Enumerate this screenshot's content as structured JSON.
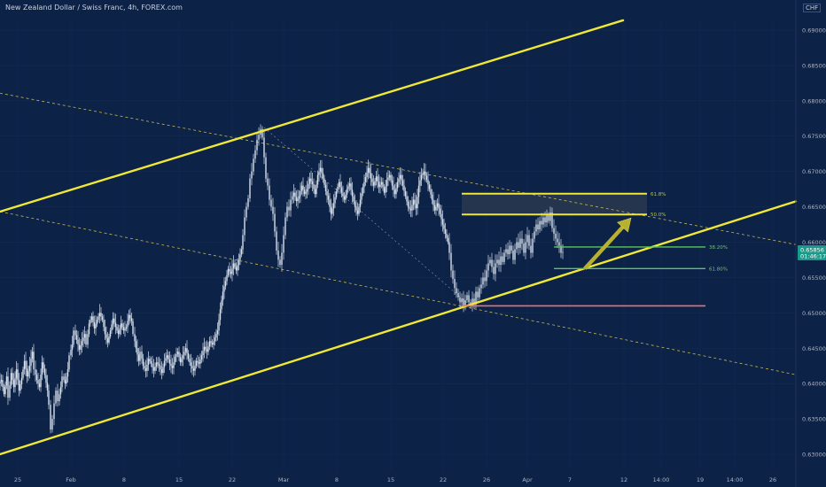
{
  "header": {
    "title": "New Zealand Dollar / Swiss Franc, 4h, FOREX.com",
    "currency": "CHF"
  },
  "colors": {
    "background": "#0c2246",
    "candle": "#d8e0ec",
    "trendline": "#f0e838",
    "dashed": "#c8b850",
    "fib_green": "#5cc65c",
    "support_red": "#f07070",
    "zone_fill": "#2a3850",
    "arrow": "#b8b030",
    "price_tag": "#1a9a8a"
  },
  "chart_data": {
    "type": "candlestick",
    "symbol": "NZD/CHF",
    "timeframe": "4h",
    "ylim": [
      0.6295,
      0.6915
    ],
    "y_ticks": [
      "0.69000",
      "0.68500",
      "0.68000",
      "0.67500",
      "0.67000",
      "0.66500",
      "0.66000",
      "0.65500",
      "0.65000",
      "0.64500",
      "0.64000",
      "0.63500",
      "0.63000"
    ],
    "x_ticks": [
      "25",
      "Feb",
      "8",
      "15",
      "22",
      "Mar",
      "8",
      "15",
      "22",
      "26",
      "Apr",
      "7",
      "12",
      "14:00",
      "19",
      "14:00",
      "26"
    ],
    "current_price": "0.65856",
    "countdown": "01:46:17",
    "path_points": [
      [
        0,
        0.64
      ],
      [
        3,
        0.6405
      ],
      [
        6,
        0.6385
      ],
      [
        9,
        0.641
      ],
      [
        11,
        0.638
      ],
      [
        14,
        0.6415
      ],
      [
        17,
        0.6395
      ],
      [
        20,
        0.642
      ],
      [
        23,
        0.639
      ],
      [
        26,
        0.6408
      ],
      [
        29,
        0.6432
      ],
      [
        32,
        0.641
      ],
      [
        35,
        0.6425
      ],
      [
        38,
        0.6445
      ],
      [
        40,
        0.642
      ],
      [
        43,
        0.6405
      ],
      [
        46,
        0.6395
      ],
      [
        49,
        0.643
      ],
      [
        52,
        0.6412
      ],
      [
        55,
        0.639
      ],
      [
        57,
        0.637
      ],
      [
        59,
        0.6335
      ],
      [
        61,
        0.635
      ],
      [
        63,
        0.6372
      ],
      [
        65,
        0.639
      ],
      [
        67,
        0.6375
      ],
      [
        70,
        0.6395
      ],
      [
        72,
        0.641
      ],
      [
        75,
        0.64
      ],
      [
        78,
        0.642
      ],
      [
        80,
        0.644
      ],
      [
        83,
        0.6455
      ],
      [
        85,
        0.6475
      ],
      [
        88,
        0.6462
      ],
      [
        91,
        0.6448
      ],
      [
        94,
        0.646
      ],
      [
        97,
        0.647
      ],
      [
        99,
        0.6455
      ],
      [
        102,
        0.6485
      ],
      [
        105,
        0.6495
      ],
      [
        108,
        0.6478
      ],
      [
        111,
        0.649
      ],
      [
        114,
        0.65
      ],
      [
        117,
        0.649
      ],
      [
        120,
        0.647
      ],
      [
        123,
        0.6458
      ],
      [
        126,
        0.6475
      ],
      [
        129,
        0.6492
      ],
      [
        132,
        0.648
      ],
      [
        135,
        0.647
      ],
      [
        138,
        0.6485
      ],
      [
        141,
        0.6475
      ],
      [
        144,
        0.648
      ],
      [
        147,
        0.6497
      ],
      [
        150,
        0.6488
      ],
      [
        152,
        0.647
      ],
      [
        155,
        0.645
      ],
      [
        158,
        0.6432
      ],
      [
        160,
        0.6445
      ],
      [
        163,
        0.6425
      ],
      [
        166,
        0.6418
      ],
      [
        169,
        0.6435
      ],
      [
        172,
        0.6428
      ],
      [
        175,
        0.6418
      ],
      [
        178,
        0.643
      ],
      [
        181,
        0.6425
      ],
      [
        184,
        0.6415
      ],
      [
        187,
        0.6432
      ],
      [
        190,
        0.644
      ],
      [
        193,
        0.6428
      ],
      [
        196,
        0.6422
      ],
      [
        199,
        0.6438
      ],
      [
        202,
        0.6445
      ],
      [
        205,
        0.643
      ],
      [
        208,
        0.644
      ],
      [
        211,
        0.645
      ],
      [
        214,
        0.6435
      ],
      [
        217,
        0.6425
      ],
      [
        220,
        0.6418
      ],
      [
        223,
        0.6432
      ],
      [
        226,
        0.6428
      ],
      [
        229,
        0.644
      ],
      [
        232,
        0.6452
      ],
      [
        235,
        0.6445
      ],
      [
        238,
        0.646
      ],
      [
        241,
        0.6455
      ],
      [
        244,
        0.6465
      ],
      [
        247,
        0.6475
      ],
      [
        250,
        0.6505
      ],
      [
        253,
        0.653
      ],
      [
        256,
        0.6545
      ],
      [
        259,
        0.6562
      ],
      [
        262,
        0.6555
      ],
      [
        265,
        0.657
      ],
      [
        268,
        0.656
      ],
      [
        271,
        0.6575
      ],
      [
        274,
        0.659
      ],
      [
        276,
        0.661
      ],
      [
        278,
        0.6635
      ],
      [
        280,
        0.665
      ],
      [
        282,
        0.6662
      ],
      [
        284,
        0.669
      ],
      [
        286,
        0.67
      ],
      [
        288,
        0.6718
      ],
      [
        290,
        0.673
      ],
      [
        292,
        0.6745
      ],
      [
        294,
        0.6752
      ],
      [
        296,
        0.676
      ],
      [
        298,
        0.6748
      ],
      [
        300,
        0.672
      ],
      [
        302,
        0.669
      ],
      [
        304,
        0.668
      ],
      [
        306,
        0.666
      ],
      [
        308,
        0.665
      ],
      [
        310,
        0.664
      ],
      [
        312,
        0.6615
      ],
      [
        314,
        0.6588
      ],
      [
        316,
        0.6575
      ],
      [
        318,
        0.6568
      ],
      [
        320,
        0.6585
      ],
      [
        322,
        0.661
      ],
      [
        324,
        0.6635
      ],
      [
        326,
        0.665
      ],
      [
        328,
        0.6645
      ],
      [
        330,
        0.666
      ],
      [
        333,
        0.667
      ],
      [
        336,
        0.6658
      ],
      [
        339,
        0.6665
      ],
      [
        342,
        0.668
      ],
      [
        345,
        0.6668
      ],
      [
        348,
        0.6675
      ],
      [
        351,
        0.669
      ],
      [
        354,
        0.6682
      ],
      [
        357,
        0.6668
      ],
      [
        360,
        0.6695
      ],
      [
        363,
        0.6705
      ],
      [
        366,
        0.669
      ],
      [
        369,
        0.6672
      ],
      [
        372,
        0.666
      ],
      [
        375,
        0.664
      ],
      [
        378,
        0.6655
      ],
      [
        381,
        0.6672
      ],
      [
        384,
        0.6685
      ],
      [
        387,
        0.667
      ],
      [
        390,
        0.666
      ],
      [
        393,
        0.6675
      ],
      [
        396,
        0.6683
      ],
      [
        399,
        0.6665
      ],
      [
        402,
        0.665
      ],
      [
        405,
        0.664
      ],
      [
        408,
        0.666
      ],
      [
        411,
        0.6678
      ],
      [
        414,
        0.6692
      ],
      [
        417,
        0.6705
      ],
      [
        420,
        0.669
      ],
      [
        423,
        0.668
      ],
      [
        426,
        0.6693
      ],
      [
        429,
        0.6678
      ],
      [
        432,
        0.6685
      ],
      [
        435,
        0.667
      ],
      [
        438,
        0.6688
      ],
      [
        441,
        0.6695
      ],
      [
        444,
        0.668
      ],
      [
        447,
        0.6668
      ],
      [
        450,
        0.6685
      ],
      [
        453,
        0.6695
      ],
      [
        456,
        0.668
      ],
      [
        459,
        0.6665
      ],
      [
        462,
        0.665
      ],
      [
        465,
        0.6645
      ],
      [
        468,
        0.666
      ],
      [
        471,
        0.6648
      ],
      [
        474,
        0.668
      ],
      [
        477,
        0.6695
      ],
      [
        480,
        0.67
      ],
      [
        483,
        0.6688
      ],
      [
        486,
        0.6675
      ],
      [
        489,
        0.666
      ],
      [
        492,
        0.6645
      ],
      [
        495,
        0.6655
      ],
      [
        498,
        0.664
      ],
      [
        501,
        0.6625
      ],
      [
        504,
        0.6612
      ],
      [
        507,
        0.66
      ],
      [
        509,
        0.6585
      ],
      [
        511,
        0.656
      ],
      [
        513,
        0.6548
      ],
      [
        515,
        0.6535
      ],
      [
        517,
        0.6528
      ],
      [
        519,
        0.6522
      ],
      [
        521,
        0.6515
      ],
      [
        523,
        0.652
      ],
      [
        525,
        0.651
      ],
      [
        527,
        0.6518
      ],
      [
        529,
        0.6525
      ],
      [
        531,
        0.6515
      ],
      [
        533,
        0.651
      ],
      [
        535,
        0.652
      ],
      [
        537,
        0.6512
      ],
      [
        539,
        0.653
      ],
      [
        541,
        0.6522
      ],
      [
        543,
        0.6535
      ],
      [
        545,
        0.654
      ],
      [
        547,
        0.655
      ],
      [
        549,
        0.6545
      ],
      [
        551,
        0.656
      ],
      [
        553,
        0.657
      ],
      [
        555,
        0.6575
      ],
      [
        557,
        0.6565
      ],
      [
        559,
        0.6555
      ],
      [
        561,
        0.657
      ],
      [
        563,
        0.6575
      ],
      [
        565,
        0.6568
      ],
      [
        567,
        0.658
      ],
      [
        569,
        0.6572
      ],
      [
        571,
        0.6585
      ],
      [
        573,
        0.659
      ],
      [
        575,
        0.6583
      ],
      [
        577,
        0.6595
      ],
      [
        579,
        0.6588
      ],
      [
        581,
        0.6575
      ],
      [
        583,
        0.659
      ],
      [
        585,
        0.66
      ],
      [
        587,
        0.6592
      ],
      [
        589,
        0.6605
      ],
      [
        591,
        0.6598
      ],
      [
        593,
        0.6585
      ],
      [
        595,
        0.66
      ],
      [
        597,
        0.661
      ],
      [
        599,
        0.6595
      ],
      [
        601,
        0.6585
      ],
      [
        603,
        0.6605
      ],
      [
        605,
        0.6615
      ],
      [
        607,
        0.6625
      ],
      [
        609,
        0.6618
      ],
      [
        611,
        0.663
      ],
      [
        613,
        0.6625
      ],
      [
        615,
        0.6635
      ],
      [
        617,
        0.6628
      ],
      [
        619,
        0.6638
      ],
      [
        621,
        0.663
      ],
      [
        623,
        0.6642
      ],
      [
        625,
        0.662
      ],
      [
        627,
        0.6612
      ],
      [
        629,
        0.6605
      ],
      [
        631,
        0.66
      ],
      [
        633,
        0.6595
      ],
      [
        635,
        0.6585
      ],
      [
        637,
        0.6586
      ]
    ],
    "drawings": {
      "upper_channel_line": {
        "p1": [
          0,
          0.66432
        ],
        "p2": [
          703,
          0.69138
        ]
      },
      "lower_channel_line": {
        "p1": [
          0,
          0.63
        ],
        "p2": [
          898,
          0.66578
        ]
      },
      "upper_dashed_line": {
        "p1": [
          0,
          0.68107
        ],
        "p2": [
          898,
          0.65966
        ]
      },
      "lower_dashed_line": {
        "p1": [
          0,
          0.66432
        ],
        "p2": [
          898,
          0.64125
        ]
      },
      "peak_to_low_dotted": {
        "p1": [
          298,
          0.67622
        ],
        "p2": [
          530,
          0.65108
        ]
      },
      "fib_61_8_upper": {
        "x1": 521,
        "x2": 730,
        "y": 0.66685,
        "label": "61.8%"
      },
      "fib_50_0_upper": {
        "x1": 521,
        "x2": 730,
        "y": 0.66392,
        "label": "50.0%"
      },
      "fib_38_2_lower": {
        "x1": 625,
        "x2": 796,
        "y": 0.65932,
        "label": "38.20%"
      },
      "fib_61_8_lower": {
        "x1": 625,
        "x2": 796,
        "y": 0.65627,
        "label": "61.80%"
      },
      "support_red": {
        "x1": 521,
        "x2": 796,
        "y": 0.65099
      },
      "target_zone": {
        "x1": 521,
        "x2": 730,
        "y1": 0.66685,
        "y2": 0.66392
      },
      "arrow": {
        "from": [
          660,
          0.65627
        ],
        "to": [
          712,
          0.66342
        ]
      }
    }
  }
}
